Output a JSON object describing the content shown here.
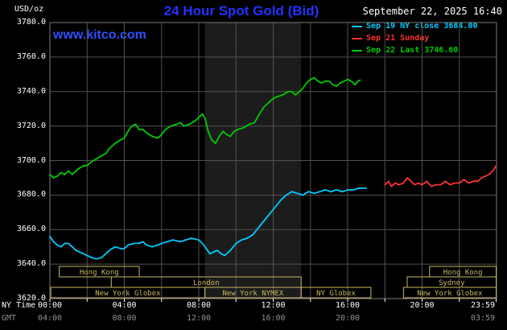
{
  "header": {
    "units": "USD/oz",
    "title": "24 Hour Spot Gold (Bid)",
    "datetime": "September 22, 2025 16:40"
  },
  "watermark": "www.kitco.com",
  "legend": [
    {
      "label": "Sep 19 NY close 3684.00",
      "color": "#00ccff"
    },
    {
      "label": "Sep 21 Sunday",
      "color": "#ff3232"
    },
    {
      "label": "Sep 22 Last 3746.60",
      "color": "#00cc00"
    }
  ],
  "colors": {
    "background": "#000000",
    "title_blue": "#2233ff",
    "watermark_blue": "#2e4fff",
    "text_white": "#ffffff",
    "gmt_gray": "#909090",
    "grid": "#525252",
    "plot_border": "#7d7d7d",
    "session_tan": "#c9b662",
    "band": "#1c1c1c",
    "tick": "#ffffff"
  },
  "axes": {
    "ny_label": "NY Time",
    "gmt_label": "GMT",
    "y_ticks": [
      {
        "value": 3780,
        "label": "3780.0"
      },
      {
        "value": 3760,
        "label": "3760.0"
      },
      {
        "value": 3740,
        "label": "3740.0"
      },
      {
        "value": 3720,
        "label": "3720.0"
      },
      {
        "value": 3700,
        "label": "3700.0"
      },
      {
        "value": 3680,
        "label": "3680.0"
      },
      {
        "value": 3660,
        "label": "3660.0"
      },
      {
        "value": 3640,
        "label": "3640.0"
      },
      {
        "value": 3620,
        "label": "3620.0"
      }
    ],
    "x_ticks_ny": [
      {
        "hour": 0,
        "label": "00:00"
      },
      {
        "hour": 4,
        "label": "04:00"
      },
      {
        "hour": 8,
        "label": "08:00"
      },
      {
        "hour": 12,
        "label": "12:00"
      },
      {
        "hour": 16,
        "label": "16:00"
      },
      {
        "hour": 20,
        "label": "20:00"
      },
      {
        "hour": 23.98,
        "label": "23:59"
      }
    ],
    "x_ticks_gmt": [
      {
        "hour": 0,
        "label": "04:00"
      },
      {
        "hour": 4,
        "label": "08:00"
      },
      {
        "hour": 8,
        "label": "12:00"
      },
      {
        "hour": 12,
        "label": "16:00"
      },
      {
        "hour": 16,
        "label": "20:00"
      },
      {
        "hour": 23.98,
        "label": "03:59"
      }
    ]
  },
  "chart_data": {
    "type": "line",
    "title": "24 Hour Spot Gold (Bid)",
    "xlabel": "NY Time (hours)",
    "ylabel": "USD/oz",
    "xlim": [
      0,
      24
    ],
    "ylim": [
      3620,
      3780
    ],
    "grid": {
      "x_hours": [
        2,
        4,
        6,
        8,
        10,
        12,
        14,
        16,
        18,
        20,
        22
      ],
      "y_values": [
        3640,
        3660,
        3680,
        3700,
        3720,
        3740,
        3760
      ]
    },
    "tick_hours": [
      0,
      2,
      4,
      6,
      8,
      10,
      12,
      14,
      16,
      18,
      20,
      22,
      23.98
    ],
    "highlight_band": {
      "name": "new-york-nymex-hours",
      "x0": 8.33,
      "x1": 13.5
    },
    "sessions": [
      {
        "row": 0,
        "label": "Hong Kong",
        "start": 0.5,
        "end": 4.8
      },
      {
        "row": 0,
        "label": "Hong Kong",
        "start": 20.4,
        "end": 23.98
      },
      {
        "row": 1,
        "label": "London",
        "start": 3.3,
        "end": 13.5
      },
      {
        "row": 1,
        "label": "Sydney",
        "start": 19.2,
        "end": 23.98
      },
      {
        "row": 2,
        "label": "New York Globex",
        "start": 0.05,
        "end": 8.33
      },
      {
        "row": 2,
        "label": "New York NYMEX",
        "start": 8.33,
        "end": 13.5
      },
      {
        "row": 2,
        "label": "NY Globex",
        "start": 13.5,
        "end": 17.25
      },
      {
        "row": 2,
        "label": "New York Globex",
        "start": 19.0,
        "end": 23.98
      }
    ],
    "series": [
      {
        "id": "sep19-ny-close",
        "name": "Sep 19 NY close 3684.00",
        "color": "#00ccff",
        "last_value": 3684.0,
        "points": [
          [
            0,
            3656
          ],
          [
            0.2,
            3653
          ],
          [
            0.4,
            3651
          ],
          [
            0.6,
            3650
          ],
          [
            0.8,
            3652
          ],
          [
            1,
            3652
          ],
          [
            1.2,
            3650
          ],
          [
            1.4,
            3648
          ],
          [
            1.6,
            3647
          ],
          [
            1.8,
            3646
          ],
          [
            2,
            3645
          ],
          [
            2.2,
            3644
          ],
          [
            2.5,
            3643
          ],
          [
            2.8,
            3644
          ],
          [
            3,
            3646
          ],
          [
            3.2,
            3648
          ],
          [
            3.5,
            3650
          ],
          [
            3.8,
            3649
          ],
          [
            4,
            3649
          ],
          [
            4.2,
            3651
          ],
          [
            4.5,
            3652
          ],
          [
            4.8,
            3652
          ],
          [
            5,
            3653
          ],
          [
            5.2,
            3651
          ],
          [
            5.5,
            3650
          ],
          [
            5.8,
            3651
          ],
          [
            6,
            3652
          ],
          [
            6.3,
            3653
          ],
          [
            6.6,
            3654
          ],
          [
            7,
            3653
          ],
          [
            7.3,
            3654
          ],
          [
            7.6,
            3655
          ],
          [
            8,
            3654
          ],
          [
            8.2,
            3652
          ],
          [
            8.4,
            3649
          ],
          [
            8.6,
            3646
          ],
          [
            8.8,
            3647
          ],
          [
            9,
            3648
          ],
          [
            9.2,
            3646
          ],
          [
            9.4,
            3645
          ],
          [
            9.7,
            3648
          ],
          [
            10,
            3652
          ],
          [
            10.3,
            3654
          ],
          [
            10.6,
            3655
          ],
          [
            10.9,
            3657
          ],
          [
            11.2,
            3661
          ],
          [
            11.5,
            3665
          ],
          [
            11.8,
            3669
          ],
          [
            12.1,
            3673
          ],
          [
            12.4,
            3677
          ],
          [
            12.7,
            3680
          ],
          [
            13,
            3682
          ],
          [
            13.3,
            3681
          ],
          [
            13.6,
            3680
          ],
          [
            13.9,
            3682
          ],
          [
            14.2,
            3681
          ],
          [
            14.5,
            3682
          ],
          [
            14.8,
            3683
          ],
          [
            15.1,
            3682
          ],
          [
            15.4,
            3683
          ],
          [
            15.7,
            3682
          ],
          [
            16,
            3683
          ],
          [
            16.3,
            3683
          ],
          [
            16.6,
            3684
          ],
          [
            17,
            3684
          ]
        ]
      },
      {
        "id": "sep21-sunday",
        "name": "Sep 21 Sunday",
        "color": "#ff3232",
        "points": [
          [
            18,
            3686
          ],
          [
            18.2,
            3688
          ],
          [
            18.35,
            3685
          ],
          [
            18.55,
            3687
          ],
          [
            18.75,
            3686
          ],
          [
            19,
            3687
          ],
          [
            19.2,
            3690
          ],
          [
            19.4,
            3688
          ],
          [
            19.6,
            3686
          ],
          [
            19.8,
            3687
          ],
          [
            20,
            3686
          ],
          [
            20.25,
            3688
          ],
          [
            20.5,
            3685
          ],
          [
            20.75,
            3686
          ],
          [
            21,
            3686
          ],
          [
            21.25,
            3688
          ],
          [
            21.5,
            3686
          ],
          [
            21.75,
            3687
          ],
          [
            22,
            3687
          ],
          [
            22.25,
            3689
          ],
          [
            22.5,
            3687
          ],
          [
            22.75,
            3688
          ],
          [
            23,
            3688
          ],
          [
            23.2,
            3690
          ],
          [
            23.4,
            3691
          ],
          [
            23.6,
            3692
          ],
          [
            23.8,
            3694
          ],
          [
            23.98,
            3697
          ]
        ]
      },
      {
        "id": "sep22-last",
        "name": "Sep 22 Last 3746.60",
        "color": "#00cc00",
        "last_value": 3746.6,
        "points": [
          [
            0,
            3692
          ],
          [
            0.2,
            3690
          ],
          [
            0.4,
            3691
          ],
          [
            0.6,
            3693
          ],
          [
            0.8,
            3692
          ],
          [
            1,
            3694
          ],
          [
            1.2,
            3692
          ],
          [
            1.5,
            3695
          ],
          [
            1.8,
            3697
          ],
          [
            2,
            3697
          ],
          [
            2.2,
            3699
          ],
          [
            2.5,
            3701
          ],
          [
            2.8,
            3703
          ],
          [
            3,
            3704
          ],
          [
            3.2,
            3707
          ],
          [
            3.5,
            3710
          ],
          [
            3.8,
            3712
          ],
          [
            4,
            3713
          ],
          [
            4.2,
            3717
          ],
          [
            4.4,
            3720
          ],
          [
            4.6,
            3721
          ],
          [
            4.8,
            3718
          ],
          [
            5,
            3718
          ],
          [
            5.2,
            3716
          ],
          [
            5.5,
            3714
          ],
          [
            5.8,
            3713
          ],
          [
            6,
            3715
          ],
          [
            6.2,
            3718
          ],
          [
            6.5,
            3720
          ],
          [
            6.8,
            3721
          ],
          [
            7,
            3722
          ],
          [
            7.2,
            3720
          ],
          [
            7.5,
            3721
          ],
          [
            7.8,
            3723
          ],
          [
            8,
            3725
          ],
          [
            8.2,
            3727
          ],
          [
            8.35,
            3724
          ],
          [
            8.5,
            3717
          ],
          [
            8.7,
            3712
          ],
          [
            8.9,
            3710
          ],
          [
            9.1,
            3714
          ],
          [
            9.3,
            3717
          ],
          [
            9.5,
            3715
          ],
          [
            9.7,
            3714
          ],
          [
            9.9,
            3717
          ],
          [
            10.1,
            3718
          ],
          [
            10.4,
            3719
          ],
          [
            10.7,
            3721
          ],
          [
            11,
            3722
          ],
          [
            11.2,
            3726
          ],
          [
            11.5,
            3731
          ],
          [
            11.8,
            3734
          ],
          [
            12,
            3736
          ],
          [
            12.2,
            3737
          ],
          [
            12.5,
            3738
          ],
          [
            12.8,
            3740
          ],
          [
            13,
            3740
          ],
          [
            13.2,
            3738
          ],
          [
            13.4,
            3740
          ],
          [
            13.6,
            3742
          ],
          [
            13.8,
            3745
          ],
          [
            14,
            3747
          ],
          [
            14.2,
            3748
          ],
          [
            14.4,
            3746
          ],
          [
            14.6,
            3745
          ],
          [
            14.8,
            3746
          ],
          [
            15,
            3746
          ],
          [
            15.2,
            3744
          ],
          [
            15.4,
            3743
          ],
          [
            15.6,
            3745
          ],
          [
            15.8,
            3746
          ],
          [
            16,
            3747
          ],
          [
            16.2,
            3746
          ],
          [
            16.4,
            3744
          ],
          [
            16.55,
            3746
          ],
          [
            16.67,
            3746.6
          ]
        ]
      }
    ]
  }
}
